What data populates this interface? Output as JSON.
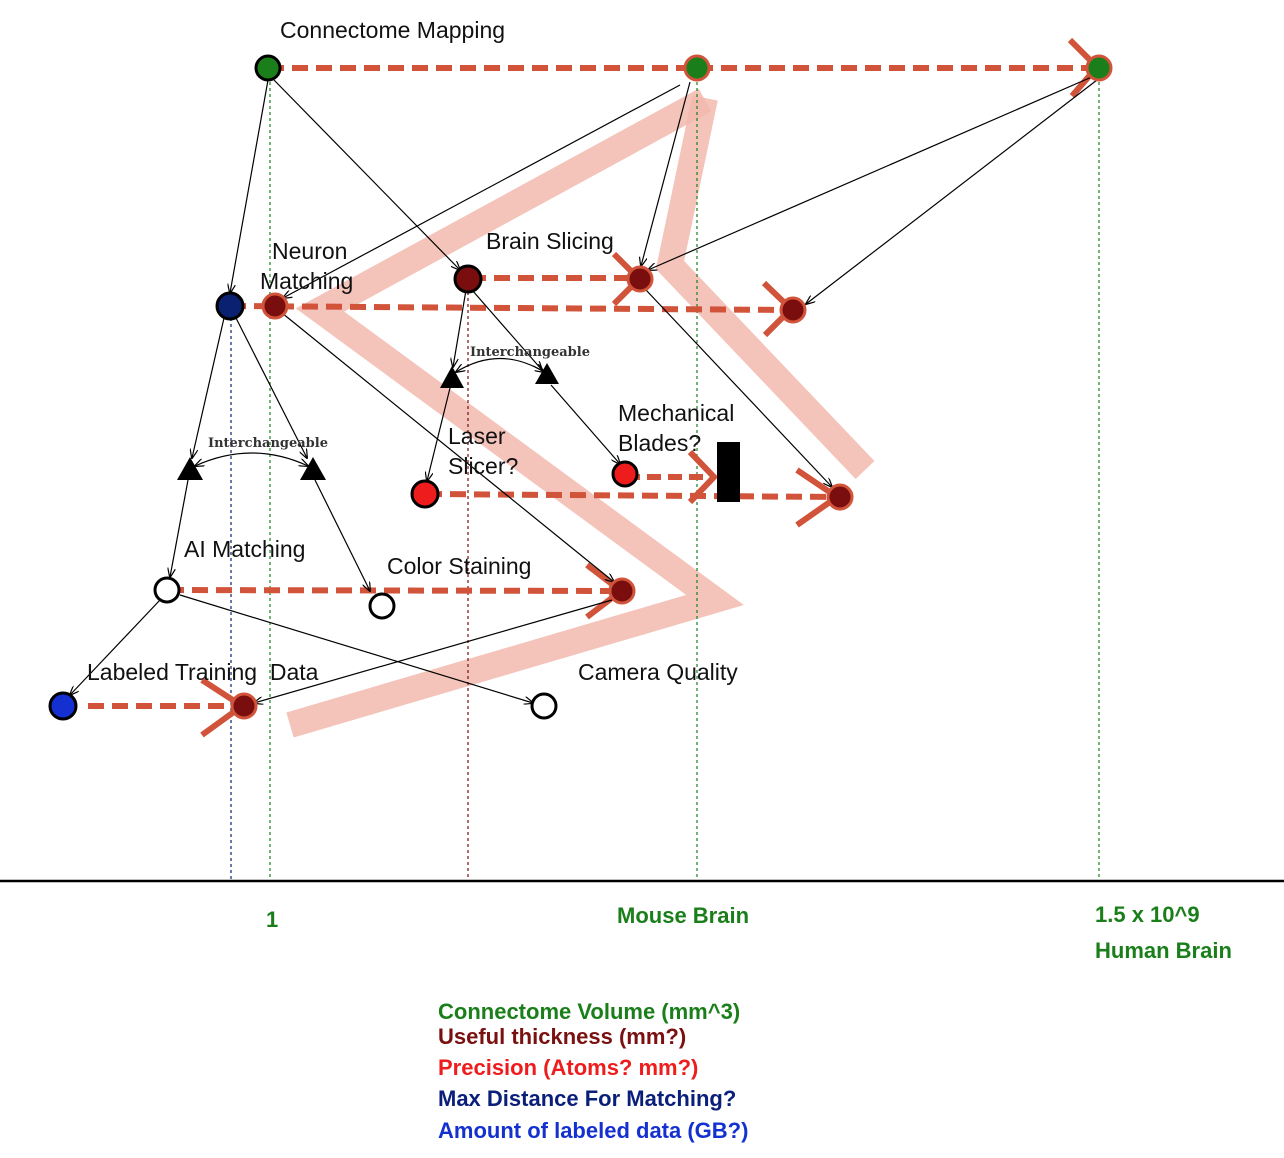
{
  "nodes": {
    "connectome_mapping": "Connectome Mapping",
    "brain_slicing": "Brain Slicing",
    "neuron_matching_1": "Neuron",
    "neuron_matching_2": "Matching",
    "mechanical_blades_1": "Mechanical",
    "mechanical_blades_2": "Blades?",
    "laser_slicer_1": "Laser",
    "laser_slicer_2": "Slicer?",
    "ai_matching": "AI Matching",
    "color_staining": "Color Staining",
    "labeled_training_data": "Labeled Training  Data",
    "camera_quality": "Camera Quality"
  },
  "annotations": {
    "interchangeable_upper": "Interchangeable",
    "interchangeable_lower": "Interchangeable"
  },
  "axis": {
    "tick_1": "1",
    "tick_mouse": "Mouse Brain",
    "tick_human_1": "1.5 x 10^9",
    "tick_human_2": "Human Brain"
  },
  "legend": [
    {
      "text": "Connectome Volume (mm^3)",
      "color": "#1a7f1a"
    },
    {
      "text": "Useful thickness (mm?)",
      "color": "#7a1010"
    },
    {
      "text": "Precision (Atoms? mm?)",
      "color": "#ee1c1c"
    },
    {
      "text": "Max Distance For Matching?",
      "color": "#0a1f7a"
    },
    {
      "text": "Amount of labeled data (GB?)",
      "color": "#1530d0"
    }
  ],
  "colors": {
    "connectome": "#1a7f1a",
    "thickness": "#7a0d0d",
    "precision": "#ee1c1c",
    "matching": "#0a2070",
    "labeled": "#1530d0",
    "progress_arrow": "#d0533a",
    "zigzag": "#f2b9ae"
  }
}
